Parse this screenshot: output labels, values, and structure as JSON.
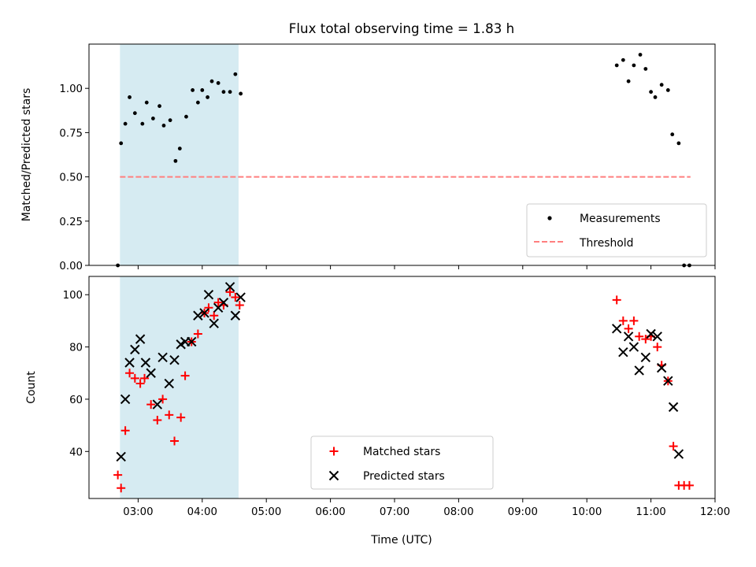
{
  "chart_data": {
    "title": "Flux total observing time = 1.83 h",
    "xlabel": "Time (UTC)",
    "x_ticks": [
      "03:00",
      "04:00",
      "05:00",
      "06:00",
      "07:00",
      "08:00",
      "09:00",
      "10:00",
      "11:00",
      "12:00"
    ],
    "x_range": [
      "02:14",
      "12:00"
    ],
    "shaded_span": {
      "start": "02:43",
      "end": "04:34",
      "color": "#add8e6"
    },
    "panels": [
      {
        "type": "scatter",
        "ylabel": "Matched/Predicted stars",
        "ylim": [
          0,
          1.25
        ],
        "y_ticks": [
          "0.00",
          "0.25",
          "0.50",
          "0.75",
          "1.00"
        ],
        "threshold": {
          "name": "Threshold",
          "value": 0.5,
          "x_start": "02:43",
          "x_end": "11:37",
          "color": "#ff7f7f"
        },
        "legend": {
          "position": "lower-right",
          "entries": [
            "Measurements",
            "Threshold"
          ]
        },
        "series": [
          {
            "name": "Measurements",
            "marker": "dot",
            "color": "#000000",
            "points": [
              [
                "02:41",
                0.0
              ],
              [
                "02:44",
                0.69
              ],
              [
                "02:48",
                0.8
              ],
              [
                "02:52",
                0.95
              ],
              [
                "02:57",
                0.86
              ],
              [
                "03:04",
                0.8
              ],
              [
                "03:08",
                0.92
              ],
              [
                "03:14",
                0.83
              ],
              [
                "03:20",
                0.9
              ],
              [
                "03:24",
                0.79
              ],
              [
                "03:30",
                0.82
              ],
              [
                "03:35",
                0.59
              ],
              [
                "03:39",
                0.66
              ],
              [
                "03:45",
                0.84
              ],
              [
                "03:51",
                0.99
              ],
              [
                "03:56",
                0.92
              ],
              [
                "04:00",
                0.99
              ],
              [
                "04:05",
                0.95
              ],
              [
                "04:09",
                1.04
              ],
              [
                "04:15",
                1.03
              ],
              [
                "04:20",
                0.98
              ],
              [
                "04:26",
                0.98
              ],
              [
                "04:31",
                1.08
              ],
              [
                "04:36",
                0.97
              ],
              [
                "10:28",
                1.13
              ],
              [
                "10:34",
                1.16
              ],
              [
                "10:39",
                1.04
              ],
              [
                "10:44",
                1.13
              ],
              [
                "10:50",
                1.19
              ],
              [
                "10:55",
                1.11
              ],
              [
                "11:00",
                0.98
              ],
              [
                "11:04",
                0.95
              ],
              [
                "11:10",
                1.02
              ],
              [
                "11:16",
                0.99
              ],
              [
                "11:20",
                0.74
              ],
              [
                "11:26",
                0.69
              ],
              [
                "11:31",
                0.0
              ],
              [
                "11:36",
                0.0
              ]
            ]
          }
        ]
      },
      {
        "type": "scatter",
        "ylabel": "Count",
        "ylim": [
          22,
          107
        ],
        "y_ticks": [
          "40",
          "60",
          "80",
          "100"
        ],
        "legend": {
          "position": "lower-center",
          "entries": [
            "Matched stars",
            "Predicted stars"
          ]
        },
        "series": [
          {
            "name": "Matched stars",
            "marker": "plus",
            "color": "#ff0000",
            "points": [
              [
                "02:41",
                31
              ],
              [
                "02:44",
                26
              ],
              [
                "02:48",
                48
              ],
              [
                "02:52",
                70
              ],
              [
                "02:57",
                68
              ],
              [
                "03:02",
                66
              ],
              [
                "03:06",
                68
              ],
              [
                "03:12",
                58
              ],
              [
                "03:18",
                52
              ],
              [
                "03:23",
                60
              ],
              [
                "03:29",
                54
              ],
              [
                "03:34",
                44
              ],
              [
                "03:40",
                53
              ],
              [
                "03:44",
                69
              ],
              [
                "03:50",
                82
              ],
              [
                "03:56",
                85
              ],
              [
                "04:02",
                93
              ],
              [
                "04:06",
                95
              ],
              [
                "04:11",
                92
              ],
              [
                "04:15",
                97
              ],
              [
                "04:20",
                96
              ],
              [
                "04:26",
                101
              ],
              [
                "04:31",
                99
              ],
              [
                "04:35",
                96
              ],
              [
                "10:28",
                98
              ],
              [
                "10:34",
                90
              ],
              [
                "10:39",
                87
              ],
              [
                "10:44",
                90
              ],
              [
                "10:49",
                84
              ],
              [
                "10:55",
                83
              ],
              [
                "11:00",
                84
              ],
              [
                "11:06",
                80
              ],
              [
                "11:10",
                73
              ],
              [
                "11:16",
                67
              ],
              [
                "11:21",
                42
              ],
              [
                "11:26",
                27
              ],
              [
                "11:31",
                27
              ],
              [
                "11:36",
                27
              ]
            ]
          },
          {
            "name": "Predicted stars",
            "marker": "x",
            "color": "#000000",
            "points": [
              [
                "02:44",
                38
              ],
              [
                "02:48",
                60
              ],
              [
                "02:52",
                74
              ],
              [
                "02:57",
                79
              ],
              [
                "03:02",
                83
              ],
              [
                "03:07",
                74
              ],
              [
                "03:12",
                70
              ],
              [
                "03:18",
                58
              ],
              [
                "03:23",
                76
              ],
              [
                "03:29",
                66
              ],
              [
                "03:34",
                75
              ],
              [
                "03:40",
                81
              ],
              [
                "03:44",
                82
              ],
              [
                "03:50",
                82
              ],
              [
                "03:56",
                92
              ],
              [
                "04:02",
                93
              ],
              [
                "04:06",
                100
              ],
              [
                "04:11",
                89
              ],
              [
                "04:15",
                95
              ],
              [
                "04:20",
                97
              ],
              [
                "04:26",
                103
              ],
              [
                "04:31",
                92
              ],
              [
                "04:36",
                99
              ],
              [
                "10:28",
                87
              ],
              [
                "10:34",
                78
              ],
              [
                "10:39",
                84
              ],
              [
                "10:44",
                80
              ],
              [
                "10:49",
                71
              ],
              [
                "10:55",
                76
              ],
              [
                "11:00",
                85
              ],
              [
                "11:06",
                84
              ],
              [
                "11:10",
                72
              ],
              [
                "11:16",
                67
              ],
              [
                "11:21",
                57
              ],
              [
                "11:26",
                39
              ]
            ]
          }
        ]
      }
    ]
  }
}
